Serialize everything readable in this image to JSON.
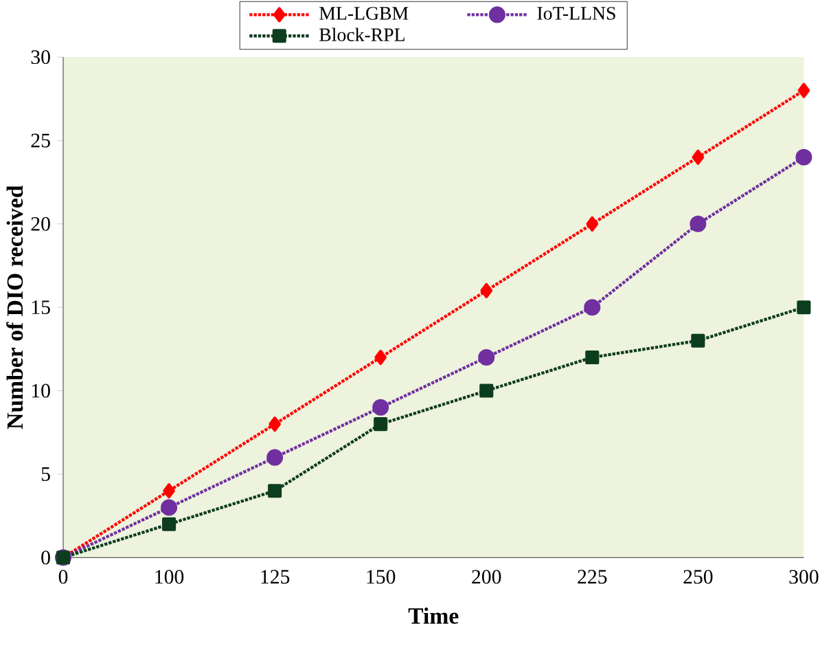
{
  "chart_data": {
    "type": "line",
    "xlabel": "Time",
    "ylabel": "Number of DIO received",
    "categories": [
      "0",
      "100",
      "125",
      "150",
      "200",
      "225",
      "250",
      "300"
    ],
    "series": [
      {
        "name": "ML-LGBM",
        "color": "#ff0000",
        "marker": "diamond",
        "values": [
          0,
          4,
          8,
          12,
          16,
          20,
          24,
          28
        ]
      },
      {
        "name": "IoT-LLNS",
        "color": "#7030a0",
        "marker": "circle",
        "values": [
          0,
          3,
          6,
          9,
          12,
          15,
          20,
          24
        ]
      },
      {
        "name": "Block-RPL",
        "color": "#0d3d1f",
        "marker": "square",
        "values": [
          0,
          2,
          4,
          8,
          10,
          12,
          13,
          15
        ]
      }
    ],
    "ylim": [
      0,
      30
    ],
    "yticks": [
      0,
      5,
      10,
      15,
      20,
      25,
      30
    ],
    "line_style": "dotted",
    "legend": "top",
    "grid": false
  }
}
